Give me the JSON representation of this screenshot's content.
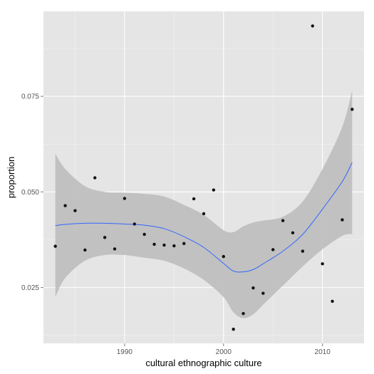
{
  "chart_data": {
    "type": "scatter",
    "title": "",
    "xlabel": "cultural ethnographic culture",
    "ylabel": "proportion",
    "xlim": [
      1981.8,
      2014.2
    ],
    "ylim": [
      0.0104,
      0.0972
    ],
    "x_ticks": [
      1990,
      2000,
      2010
    ],
    "x_tick_labels": [
      "1990",
      "2000",
      "2010"
    ],
    "y_ticks": [
      0.025,
      0.05,
      0.075
    ],
    "y_tick_labels": [
      "0.025",
      "0.050",
      "0.075"
    ],
    "grid": true,
    "legend": "none",
    "colors": {
      "panel": "#e5e5e5",
      "grid_major": "#ffffff",
      "grid_minor": "#f2f2f2",
      "points": "#111111",
      "smooth_line": "#3366ff",
      "ribbon": "#bdbdbd"
    },
    "points": {
      "x": [
        1983,
        1984,
        1985,
        1986,
        1987,
        1988,
        1989,
        1990,
        1991,
        1992,
        1993,
        1994,
        1995,
        1996,
        1997,
        1998,
        1999,
        2000,
        2001,
        2002,
        2003,
        2004,
        2005,
        2006,
        2007,
        2008,
        2009,
        2010,
        2011,
        2012,
        2013
      ],
      "y": [
        0.0358,
        0.0464,
        0.0451,
        0.0348,
        0.0537,
        0.0381,
        0.0351,
        0.0483,
        0.0416,
        0.0389,
        0.0363,
        0.0361,
        0.0359,
        0.0365,
        0.0482,
        0.0443,
        0.0505,
        0.0331,
        0.0141,
        0.0182,
        0.0249,
        0.0235,
        0.0349,
        0.0425,
        0.0393,
        0.0345,
        0.0934,
        0.0312,
        0.0214,
        0.0427,
        0.0716
      ]
    },
    "smooth": {
      "x": [
        1983,
        1984,
        1986,
        1988,
        1990,
        1992,
        1994,
        1996,
        1998,
        2000,
        2001,
        2002,
        2003,
        2004,
        2006,
        2008,
        2010,
        2012,
        2013
      ],
      "y": [
        0.0412,
        0.0415,
        0.0418,
        0.0418,
        0.0416,
        0.0413,
        0.0404,
        0.0383,
        0.0355,
        0.0313,
        0.0293,
        0.0291,
        0.0297,
        0.0312,
        0.0345,
        0.0389,
        0.0455,
        0.0527,
        0.0577
      ],
      "lower": [
        0.0225,
        0.0275,
        0.032,
        0.0335,
        0.0335,
        0.0328,
        0.032,
        0.03,
        0.027,
        0.0225,
        0.0185,
        0.017,
        0.018,
        0.0205,
        0.0255,
        0.0305,
        0.035,
        0.0385,
        0.039
      ],
      "upper": [
        0.06,
        0.056,
        0.0515,
        0.05,
        0.0498,
        0.0495,
        0.0488,
        0.0466,
        0.044,
        0.04,
        0.0395,
        0.041,
        0.042,
        0.0425,
        0.0435,
        0.0475,
        0.056,
        0.067,
        0.0765
      ]
    }
  }
}
